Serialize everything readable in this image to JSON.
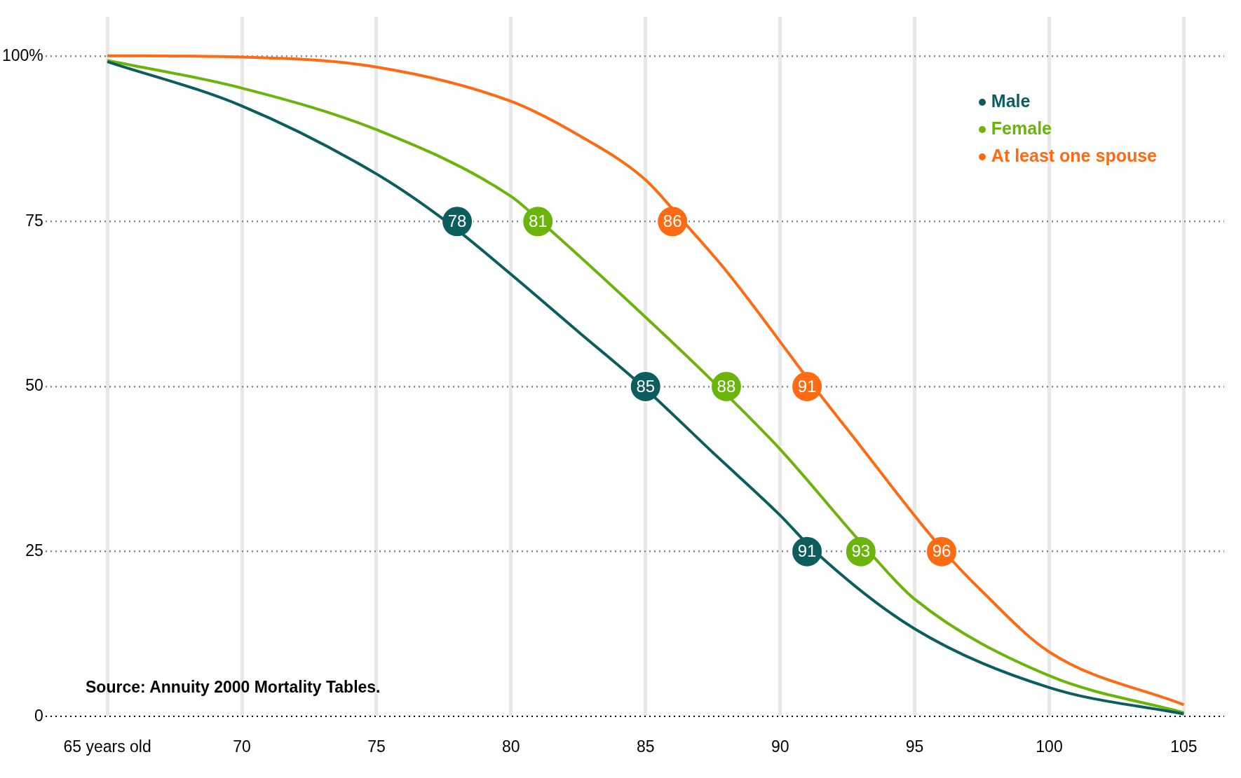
{
  "chart_data": {
    "type": "line",
    "xlim": [
      62.7,
      106.5
    ],
    "ylim": [
      0,
      106
    ],
    "xticks": [
      {
        "value": 65,
        "label": "65 years old"
      },
      70,
      75,
      80,
      85,
      90,
      95,
      100,
      105
    ],
    "yticks": [
      0,
      25,
      50,
      75,
      {
        "value": 100,
        "label": "100%"
      }
    ],
    "grid": true,
    "legend": "top right",
    "line_style": "solid",
    "marker": "none",
    "annotations": [
      "Source: Annuity 2000 Mortality Tables.",
      {
        "text": "78",
        "x": 78,
        "y": 75
      },
      {
        "text": "85",
        "x": 85,
        "y": 50
      },
      {
        "text": "91",
        "x": 91,
        "y": 25
      },
      {
        "text": "81",
        "x": 81,
        "y": 75
      },
      {
        "text": "88",
        "x": 88,
        "y": 50
      },
      {
        "text": "93",
        "x": 93,
        "y": 25
      },
      {
        "text": "86",
        "x": 86,
        "y": 75
      },
      {
        "text": "91",
        "x": 91,
        "y": 50
      },
      {
        "text": "96",
        "x": 96,
        "y": 25
      }
    ],
    "series": [
      {
        "name": "Male",
        "color": "#0b5d5e",
        "x": [
          65,
          70,
          75,
          77.6,
          80,
          82.5,
          84.9,
          87.5,
          90,
          91.3,
          95,
          100,
          105
        ],
        "values": [
          99.2,
          92.5,
          82.2,
          75,
          67,
          58.3,
          50,
          40,
          30.5,
          25,
          13.3,
          4.4,
          0.4
        ]
      },
      {
        "name": "Female",
        "color": "#6ab40b",
        "x": [
          65,
          70,
          75,
          80,
          81.1,
          85,
          87.7,
          90,
          93.3,
          95,
          100,
          105
        ],
        "values": [
          99.4,
          95.2,
          88.9,
          78.8,
          75,
          60.5,
          50,
          40.5,
          25,
          17.8,
          6.2,
          0.6
        ]
      },
      {
        "name": "At least one spouse",
        "color": "#ff6a13",
        "x": [
          65,
          70,
          75,
          80,
          82.5,
          85,
          86.4,
          88,
          91.25,
          92.5,
          96.1,
          97.5,
          100,
          105
        ],
        "values": [
          100.1,
          99.9,
          98.4,
          93.2,
          88.1,
          81.3,
          75,
          67.5,
          50,
          43.5,
          25,
          19,
          9.8,
          1.8
        ]
      },
      {
        "type": "scatter",
        "marker": "circle",
        "color": "#0b5d5e",
        "x": [
          78,
          85,
          91
        ],
        "values": [
          75,
          50,
          25
        ]
      },
      {
        "type": "scatter",
        "marker": "circle",
        "color": "#6ab40b",
        "x": [
          81,
          88,
          93
        ],
        "values": [
          75,
          50,
          25
        ]
      },
      {
        "type": "scatter",
        "marker": "circle",
        "color": "#ff6a13",
        "x": [
          86,
          91,
          96
        ],
        "values": [
          75,
          50,
          25
        ]
      }
    ]
  }
}
